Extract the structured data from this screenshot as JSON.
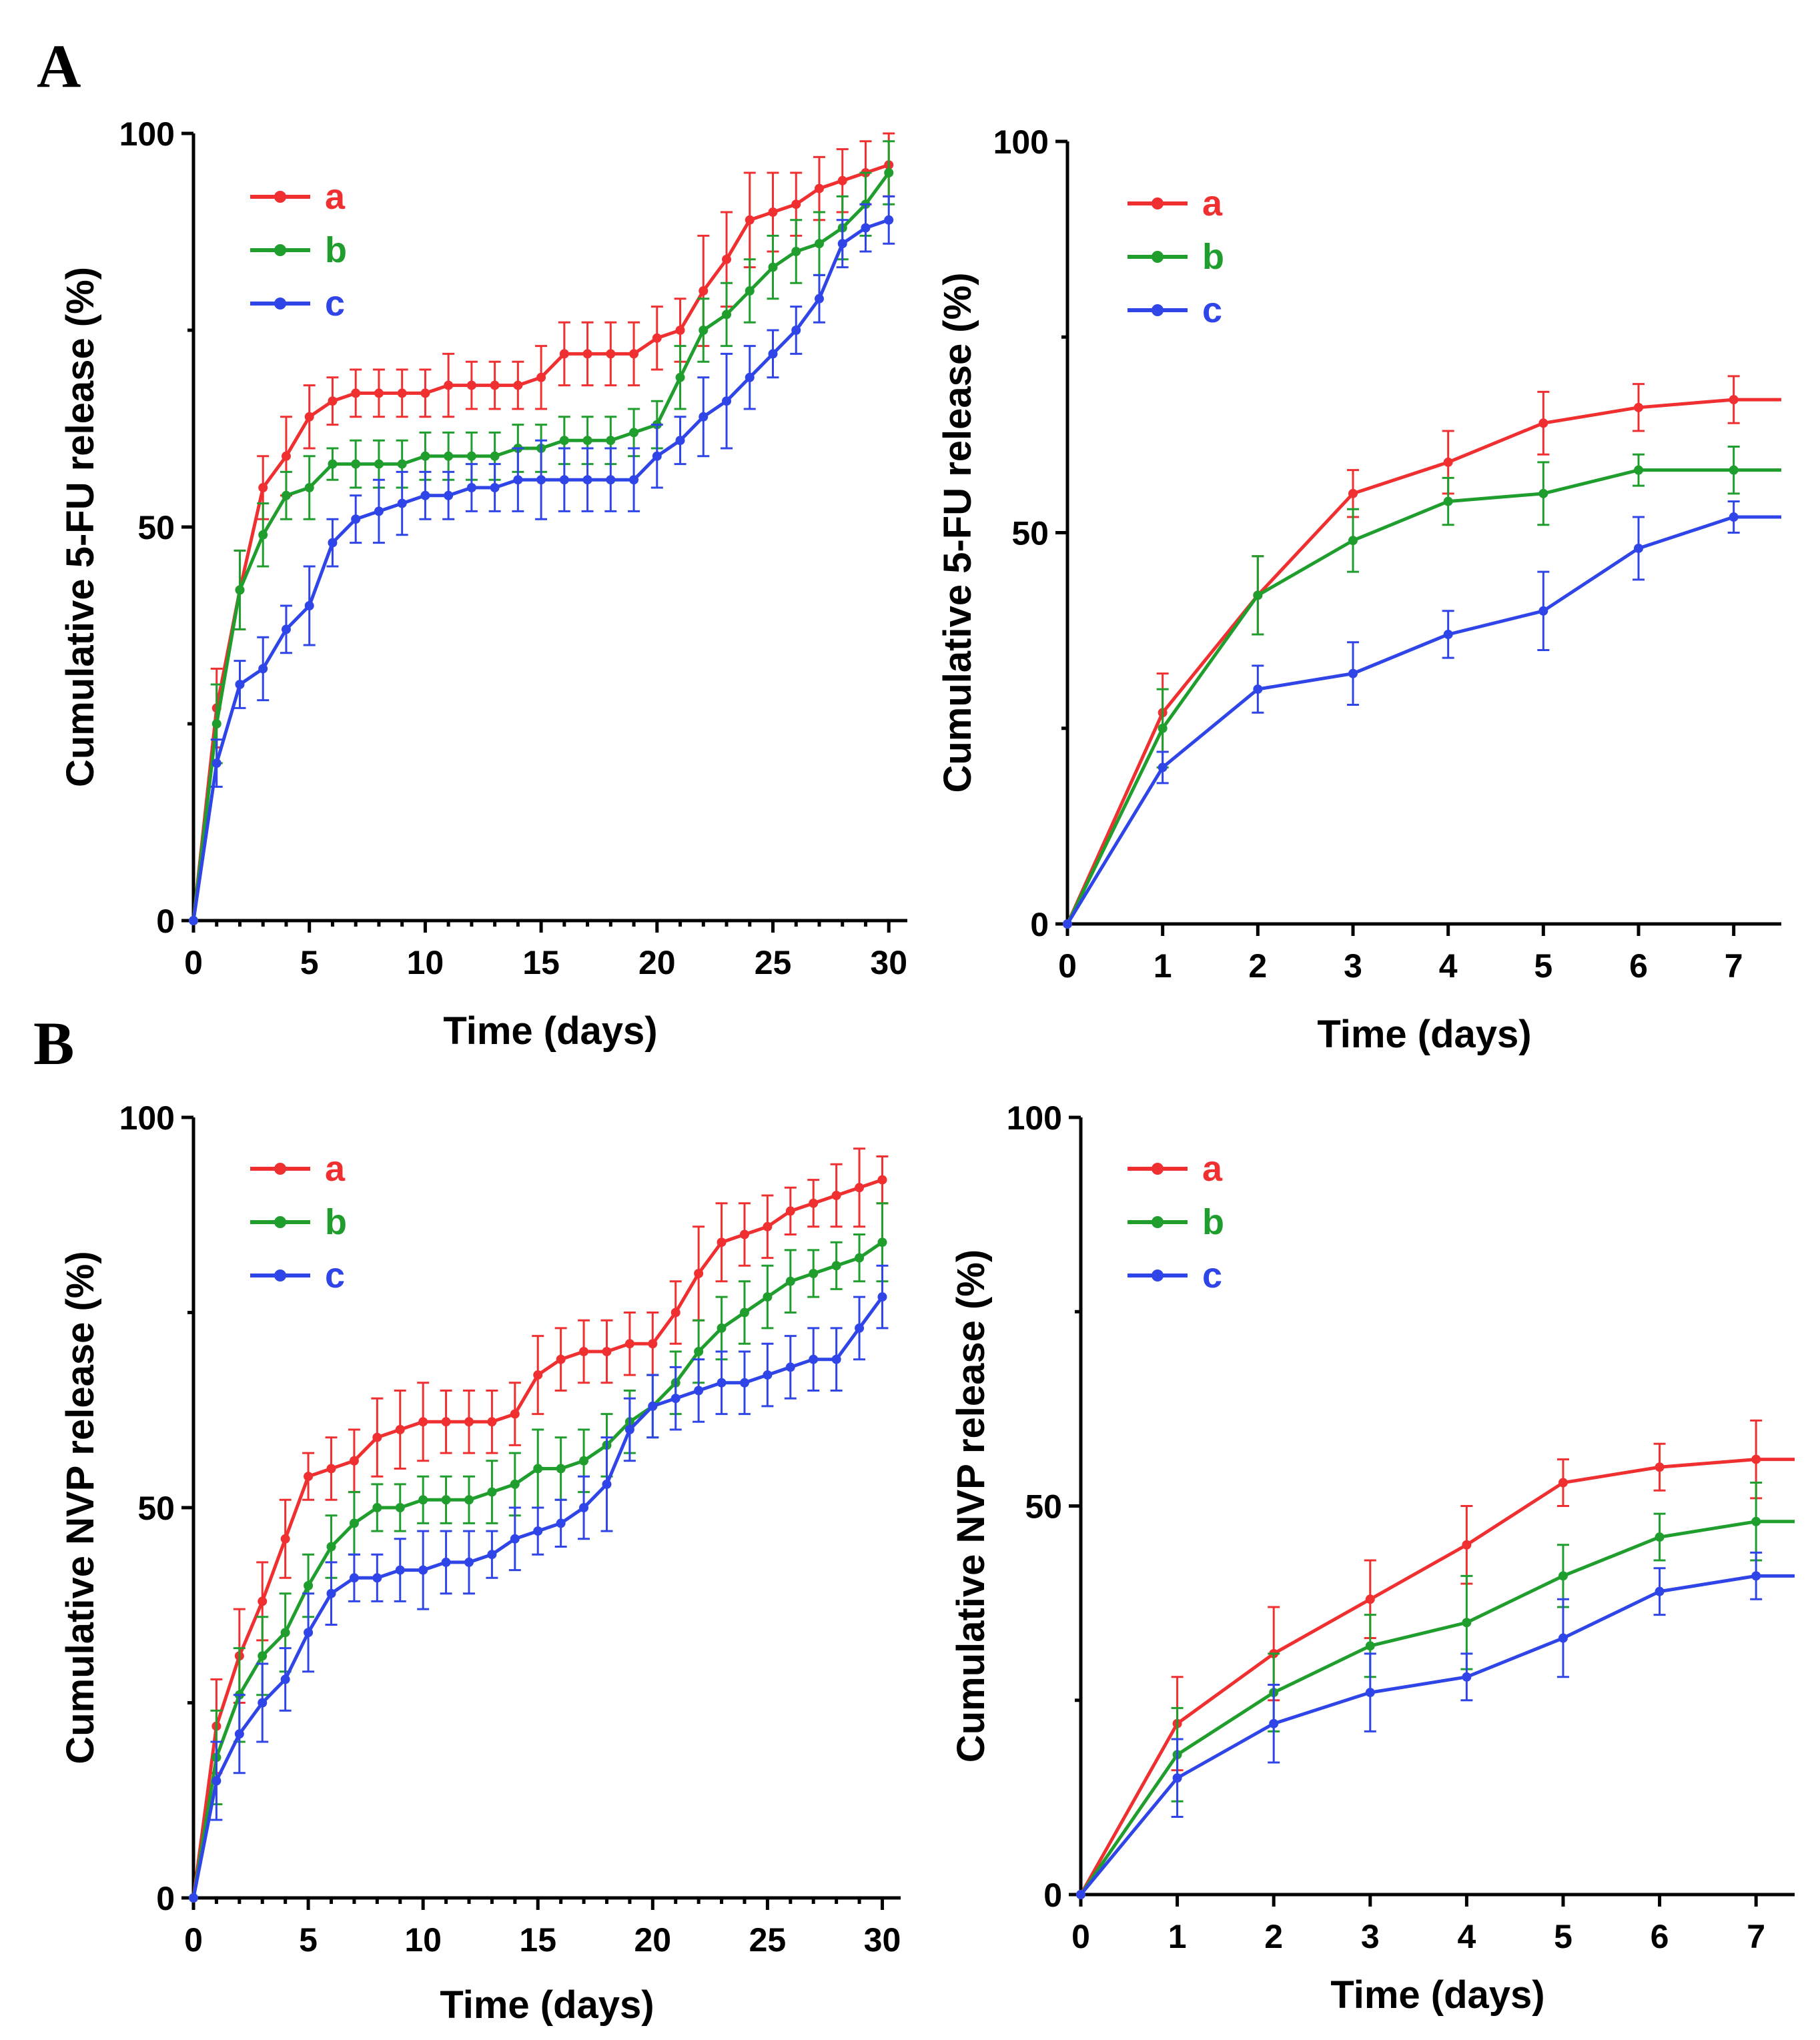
{
  "panel_labels": {
    "A": "A",
    "B": "B"
  },
  "colors": {
    "a": "#f03030",
    "b": "#1f9e2e",
    "c": "#2f45e8"
  },
  "chart_data": [
    {
      "id": "A-full",
      "panel": "A",
      "type": "line",
      "xlabel": "Time (days)",
      "ylabel": "Cumulative 5-FU release (%)",
      "xlim": [
        0,
        30.8
      ],
      "ylim": [
        0,
        100
      ],
      "xticks": [
        0,
        5,
        10,
        15,
        20,
        25,
        30
      ],
      "yticks": [
        0,
        50,
        100
      ],
      "legend": [
        "a",
        "b",
        "c"
      ],
      "series": [
        {
          "name": "a",
          "color": "#f03030",
          "x": [
            0,
            1,
            2,
            3,
            4,
            5,
            6,
            7,
            8,
            9,
            10,
            11,
            12,
            13,
            14,
            15,
            16,
            17,
            18,
            19,
            20,
            21,
            22,
            23,
            24,
            25,
            26,
            27,
            28,
            29,
            30
          ],
          "y": [
            0,
            27,
            42,
            55,
            59,
            64,
            66,
            67,
            67,
            67,
            67,
            68,
            68,
            68,
            68,
            69,
            72,
            72,
            72,
            72,
            74,
            75,
            80,
            84,
            89,
            90,
            91,
            93,
            94,
            95,
            96
          ],
          "err": [
            0,
            5,
            5,
            4,
            5,
            4,
            3,
            3,
            3,
            3,
            3,
            4,
            3,
            3,
            3,
            4,
            4,
            4,
            4,
            4,
            4,
            4,
            7,
            6,
            6,
            5,
            4,
            4,
            4,
            4,
            4
          ]
        },
        {
          "name": "b",
          "color": "#1f9e2e",
          "x": [
            0,
            1,
            2,
            3,
            4,
            5,
            6,
            7,
            8,
            9,
            10,
            11,
            12,
            13,
            14,
            15,
            16,
            17,
            18,
            19,
            20,
            21,
            22,
            23,
            24,
            25,
            26,
            27,
            28,
            29,
            30
          ],
          "y": [
            0,
            25,
            42,
            49,
            54,
            55,
            58,
            58,
            58,
            58,
            59,
            59,
            59,
            59,
            60,
            60,
            61,
            61,
            61,
            62,
            63,
            69,
            75,
            77,
            80,
            83,
            85,
            86,
            88,
            91,
            95
          ],
          "err": [
            0,
            5,
            5,
            4,
            3,
            4,
            2,
            3,
            3,
            3,
            3,
            3,
            3,
            3,
            3,
            3,
            3,
            3,
            3,
            3,
            3,
            4,
            4,
            4,
            4,
            4,
            4,
            4,
            4,
            4,
            4
          ]
        },
        {
          "name": "c",
          "color": "#2f45e8",
          "x": [
            0,
            1,
            2,
            3,
            4,
            5,
            6,
            7,
            8,
            9,
            10,
            11,
            12,
            13,
            14,
            15,
            16,
            17,
            18,
            19,
            20,
            21,
            22,
            23,
            24,
            25,
            26,
            27,
            28,
            29,
            30
          ],
          "y": [
            0,
            20,
            30,
            32,
            37,
            40,
            48,
            51,
            52,
            53,
            54,
            54,
            55,
            55,
            56,
            56,
            56,
            56,
            56,
            56,
            59,
            61,
            64,
            66,
            69,
            72,
            75,
            79,
            86,
            88,
            89
          ],
          "err": [
            0,
            3,
            3,
            4,
            3,
            5,
            3,
            3,
            4,
            4,
            3,
            3,
            3,
            3,
            4,
            5,
            4,
            4,
            4,
            4,
            4,
            3,
            5,
            6,
            4,
            3,
            3,
            3,
            3,
            3,
            3
          ]
        }
      ]
    },
    {
      "id": "A-zoom",
      "panel": "A",
      "type": "line",
      "xlabel": "Time (days)",
      "ylabel": "Cumulative 5-FU release (%)",
      "xlim": [
        0,
        7.5
      ],
      "ylim": [
        0,
        100
      ],
      "xticks": [
        0,
        1,
        2,
        3,
        4,
        5,
        6,
        7
      ],
      "yticks": [
        0,
        50,
        100
      ],
      "legend": [
        "a",
        "b",
        "c"
      ],
      "extend_to": 7.5,
      "series": [
        {
          "name": "a",
          "color": "#f03030",
          "x": [
            0,
            1,
            2,
            3,
            4,
            5,
            6,
            7
          ],
          "y": [
            0,
            27,
            42,
            55,
            59,
            64,
            66,
            67
          ],
          "err": [
            0,
            5,
            5,
            3,
            4,
            4,
            3,
            3
          ]
        },
        {
          "name": "b",
          "color": "#1f9e2e",
          "x": [
            0,
            1,
            2,
            3,
            4,
            5,
            6,
            7
          ],
          "y": [
            0,
            25,
            42,
            49,
            54,
            55,
            58,
            58
          ],
          "err": [
            0,
            5,
            5,
            4,
            3,
            4,
            2,
            3
          ]
        },
        {
          "name": "c",
          "color": "#2f45e8",
          "x": [
            0,
            1,
            2,
            3,
            4,
            5,
            6,
            7
          ],
          "y": [
            0,
            20,
            30,
            32,
            37,
            40,
            48,
            52
          ],
          "err": [
            0,
            2,
            3,
            4,
            3,
            5,
            4,
            2
          ]
        }
      ]
    },
    {
      "id": "B-full",
      "panel": "B",
      "type": "line",
      "xlabel": "Time (days)",
      "ylabel": "Cumulative NVP release (%)",
      "xlim": [
        0,
        30.8
      ],
      "ylim": [
        0,
        100
      ],
      "xticks": [
        0,
        5,
        10,
        15,
        20,
        25,
        30
      ],
      "yticks": [
        0,
        50,
        100
      ],
      "legend": [
        "a",
        "b",
        "c"
      ],
      "series": [
        {
          "name": "a",
          "color": "#f03030",
          "x": [
            0,
            1,
            2,
            3,
            4,
            5,
            6,
            7,
            8,
            9,
            10,
            11,
            12,
            13,
            14,
            15,
            16,
            17,
            18,
            19,
            20,
            21,
            22,
            23,
            24,
            25,
            26,
            27,
            28,
            29,
            30
          ],
          "y": [
            0,
            22,
            31,
            38,
            46,
            54,
            55,
            56,
            59,
            60,
            61,
            61,
            61,
            61,
            62,
            67,
            69,
            70,
            70,
            71,
            71,
            75,
            80,
            84,
            85,
            86,
            88,
            89,
            90,
            91,
            92
          ],
          "err": [
            0,
            6,
            6,
            5,
            5,
            3,
            4,
            4,
            5,
            5,
            5,
            4,
            4,
            4,
            4,
            5,
            4,
            4,
            4,
            4,
            4,
            4,
            6,
            5,
            4,
            4,
            3,
            3,
            4,
            5,
            3
          ]
        },
        {
          "name": "b",
          "color": "#1f9e2e",
          "x": [
            0,
            1,
            2,
            3,
            4,
            5,
            6,
            7,
            8,
            9,
            10,
            11,
            12,
            13,
            14,
            15,
            16,
            17,
            18,
            19,
            20,
            21,
            22,
            23,
            24,
            25,
            26,
            27,
            28,
            29,
            30
          ],
          "y": [
            0,
            18,
            26,
            31,
            34,
            40,
            45,
            48,
            50,
            50,
            51,
            51,
            51,
            52,
            53,
            55,
            55,
            56,
            58,
            61,
            63,
            66,
            70,
            73,
            75,
            77,
            79,
            80,
            81,
            82,
            84
          ],
          "err": [
            0,
            6,
            6,
            5,
            5,
            4,
            4,
            4,
            3,
            3,
            3,
            3,
            3,
            4,
            4,
            5,
            4,
            4,
            4,
            4,
            4,
            4,
            4,
            4,
            4,
            4,
            4,
            3,
            3,
            3,
            5
          ]
        },
        {
          "name": "c",
          "color": "#2f45e8",
          "x": [
            0,
            1,
            2,
            3,
            4,
            5,
            6,
            7,
            8,
            9,
            10,
            11,
            12,
            13,
            14,
            15,
            16,
            17,
            18,
            19,
            20,
            21,
            22,
            23,
            24,
            25,
            26,
            27,
            28,
            29,
            30
          ],
          "y": [
            0,
            15,
            21,
            25,
            28,
            34,
            39,
            41,
            41,
            42,
            42,
            43,
            43,
            44,
            46,
            47,
            48,
            50,
            53,
            60,
            63,
            64,
            65,
            66,
            66,
            67,
            68,
            69,
            69,
            73,
            77
          ],
          "err": [
            0,
            5,
            5,
            5,
            4,
            5,
            4,
            3,
            3,
            4,
            5,
            4,
            4,
            3,
            4,
            3,
            3,
            4,
            6,
            4,
            4,
            4,
            4,
            4,
            4,
            4,
            4,
            4,
            4,
            4,
            4
          ]
        }
      ]
    },
    {
      "id": "B-zoom",
      "panel": "B",
      "type": "line",
      "xlabel": "Time (days)",
      "ylabel": "Cumulative NVP release (%)",
      "xlim": [
        0,
        7.4
      ],
      "ylim": [
        0,
        100
      ],
      "xticks": [
        0,
        1,
        2,
        3,
        4,
        5,
        6,
        7
      ],
      "yticks": [
        0,
        50,
        100
      ],
      "legend": [
        "a",
        "b",
        "c"
      ],
      "extend_to": 7.4,
      "series": [
        {
          "name": "a",
          "color": "#f03030",
          "x": [
            0,
            1,
            2,
            3,
            4,
            5,
            6,
            7
          ],
          "y": [
            0,
            22,
            31,
            38,
            45,
            53,
            55,
            56
          ],
          "err": [
            0,
            6,
            6,
            5,
            5,
            3,
            3,
            5
          ]
        },
        {
          "name": "b",
          "color": "#1f9e2e",
          "x": [
            0,
            1,
            2,
            3,
            4,
            5,
            6,
            7
          ],
          "y": [
            0,
            18,
            26,
            32,
            35,
            41,
            46,
            48
          ],
          "err": [
            0,
            6,
            5,
            4,
            6,
            4,
            3,
            5
          ]
        },
        {
          "name": "c",
          "color": "#2f45e8",
          "x": [
            0,
            1,
            2,
            3,
            4,
            5,
            6,
            7
          ],
          "y": [
            0,
            15,
            22,
            26,
            28,
            33,
            39,
            41
          ],
          "err": [
            0,
            5,
            5,
            5,
            3,
            5,
            3,
            3
          ]
        }
      ]
    }
  ]
}
